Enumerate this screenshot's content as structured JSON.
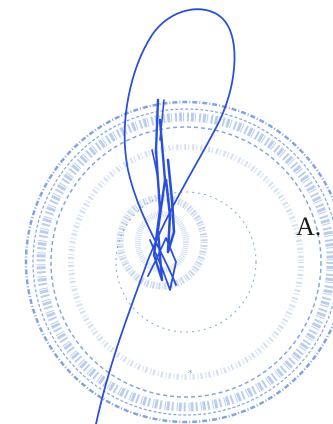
{
  "document": {
    "text_fragment": "A."
  },
  "stamp": {
    "type": "round-seal",
    "color": "#5a86d6"
  },
  "signature": {
    "type": "handwritten-signature",
    "color": "#2a4fd8"
  }
}
